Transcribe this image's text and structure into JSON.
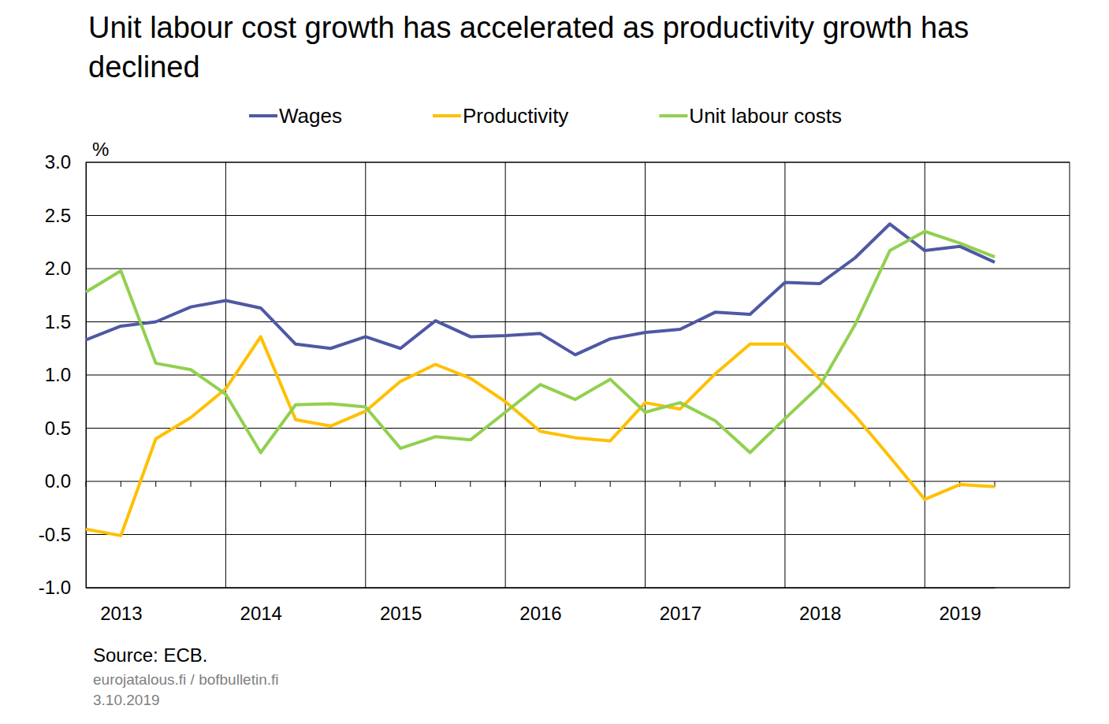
{
  "chart_data": {
    "type": "line",
    "title": "Unit labour cost growth has accelerated as productivity growth has declined",
    "y_label": "%",
    "source": "Source: ECB.",
    "footer": [
      "eurojatalous.fi / bofbulletin.fi",
      "3.10.2019"
    ],
    "legend": "top",
    "grid": true,
    "categories": [
      null,
      "2013",
      null,
      null,
      null,
      "2014",
      null,
      null,
      null,
      "2015",
      null,
      null,
      null,
      "2016",
      null,
      null,
      null,
      "2017",
      null,
      null,
      null,
      "2018",
      null,
      null,
      null,
      "2019",
      null
    ],
    "ylim": [
      -1.0,
      3.0
    ],
    "yticks": [
      {
        "value": -1.0,
        "label": "-1.0"
      },
      -0.5,
      {
        "value": 0.0,
        "label": "0.0"
      },
      0.5,
      {
        "value": 1.0,
        "label": "1.0"
      },
      1.5,
      {
        "value": 2.0,
        "label": "2.0"
      },
      2.5,
      {
        "value": 3.0,
        "label": "3.0"
      }
    ],
    "series": [
      {
        "name": "Wages",
        "color": "#4f58a3",
        "line_style": "solid",
        "values": [
          1.33,
          1.46,
          1.5,
          1.64,
          1.7,
          1.63,
          1.29,
          1.25,
          1.36,
          1.25,
          1.51,
          1.36,
          1.37,
          1.39,
          1.19,
          1.34,
          1.4,
          1.43,
          1.59,
          1.57,
          1.87,
          1.86,
          2.1,
          2.42,
          2.17,
          2.21,
          2.06
        ]
      },
      {
        "name": "Productivity",
        "color": "#ffc000",
        "line_style": "solid",
        "values": [
          -0.45,
          -0.51,
          0.4,
          0.6,
          0.87,
          1.36,
          0.58,
          0.52,
          0.66,
          0.94,
          1.1,
          0.97,
          0.75,
          0.47,
          0.41,
          0.38,
          0.74,
          0.68,
          1.01,
          1.29,
          1.29,
          0.96,
          0.62,
          0.23,
          -0.17,
          -0.03,
          -0.05
        ]
      },
      {
        "name": "Unit labour costs",
        "color": "#92d050",
        "line_style": "solid",
        "values": [
          1.78,
          1.98,
          1.11,
          1.05,
          0.82,
          0.27,
          0.72,
          0.73,
          0.7,
          0.31,
          0.42,
          0.39,
          0.65,
          0.91,
          0.77,
          0.96,
          0.65,
          0.74,
          0.57,
          0.27,
          0.59,
          0.9,
          1.47,
          2.17,
          2.35,
          2.24,
          2.11
        ]
      }
    ]
  }
}
